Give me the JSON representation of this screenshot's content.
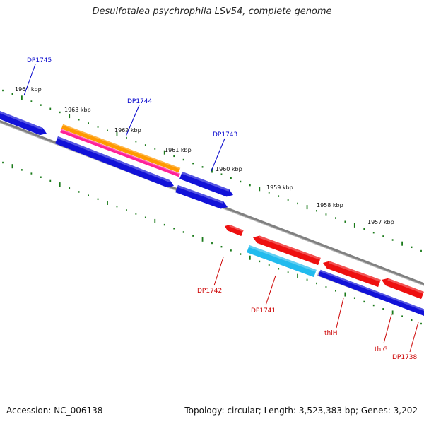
{
  "title": "Desulfotalea psychrophila LSv54, complete genome",
  "footer": {
    "accession": "Accession: NC_006138",
    "stats": "Topology: circular; Length: 3,523,383 bp; Genes: 3,202"
  },
  "colors": {
    "background": "#ffffff",
    "backbone": "#808080",
    "tick": "#1a7a1a",
    "forward_gene": "#1212d8",
    "reverse_gene": "#ee1010",
    "forward_label": "#0000cc",
    "reverse_label": "#cc0000",
    "cyan_gene": "#22bbee",
    "orange_gene": "#ff9a00",
    "magenta_gene": "#ff2299"
  },
  "ticks": [
    {
      "label": "1964 kbp"
    },
    {
      "label": "1963 kbp"
    },
    {
      "label": "1962 kbp"
    },
    {
      "label": "1961 kbp"
    },
    {
      "label": "1960 kbp"
    },
    {
      "label": "1959 kbp"
    },
    {
      "label": "1958 kbp"
    },
    {
      "label": "1957 kbp"
    }
  ],
  "gene_labels": [
    {
      "name": "DP1745",
      "strand": "forward"
    },
    {
      "name": "DP1744",
      "strand": "forward"
    },
    {
      "name": "DP1743",
      "strand": "forward"
    },
    {
      "name": "DP1742",
      "strand": "reverse"
    },
    {
      "name": "DP1741",
      "strand": "reverse"
    },
    {
      "name": "thiH",
      "strand": "reverse"
    },
    {
      "name": "thiG",
      "strand": "reverse"
    },
    {
      "name": "DP1738",
      "strand": "reverse"
    }
  ]
}
